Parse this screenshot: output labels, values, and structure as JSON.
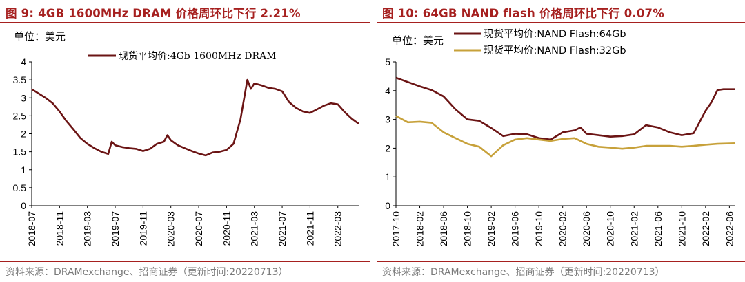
{
  "figures": [
    {
      "title": "图 9:  4GB 1600MHz DRAM 价格周环比下行 2.21%",
      "source": "资料来源：DRAMexchange、招商证券（更新时间:20220713）"
    },
    {
      "title": "图 10:  64GB NAND flash 价格周环比下行 0.07%",
      "source": "资料来源：DRAMexchange、招商证券（更新时间:20220713）"
    }
  ],
  "colors": {
    "title": "#a6201f",
    "dram": "#6b1414",
    "nand64": "#6b1414",
    "nand32": "#c7a13a",
    "source": "#7a7a7a"
  },
  "chart_data": [
    {
      "type": "line",
      "unit_label": "单位：美元",
      "ylim": [
        0,
        4
      ],
      "yticks": [
        "0",
        "0.5",
        "1",
        "1.5",
        "2",
        "2.5",
        "3",
        "3.5",
        "4"
      ],
      "xlim": [
        "2018-07",
        "2022-06"
      ],
      "xticks": [
        "2018-07",
        "2018-11",
        "2019-03",
        "2019-07",
        "2019-11",
        "2020-03",
        "2020-07",
        "2020-11",
        "2021-03",
        "2021-07",
        "2021-11",
        "2022-03"
      ],
      "series": [
        {
          "name": "现货平均价:4Gb 1600MHz DRAM",
          "points": [
            [
              "2018-07",
              3.24
            ],
            [
              "2018-08",
              3.12
            ],
            [
              "2018-09",
              3.0
            ],
            [
              "2018-10",
              2.85
            ],
            [
              "2018-11",
              2.62
            ],
            [
              "2018-12",
              2.35
            ],
            [
              "2019-01",
              2.12
            ],
            [
              "2019-02",
              1.88
            ],
            [
              "2019-03",
              1.72
            ],
            [
              "2019-04",
              1.6
            ],
            [
              "2019-05",
              1.5
            ],
            [
              "2019-06",
              1.44
            ],
            [
              "2019-06.5",
              1.78
            ],
            [
              "2019-07",
              1.68
            ],
            [
              "2019-08",
              1.63
            ],
            [
              "2019-09",
              1.6
            ],
            [
              "2019-10",
              1.58
            ],
            [
              "2019-11",
              1.52
            ],
            [
              "2019-12",
              1.58
            ],
            [
              "2020-01",
              1.72
            ],
            [
              "2020-02",
              1.78
            ],
            [
              "2020-02.5",
              1.96
            ],
            [
              "2020-03",
              1.82
            ],
            [
              "2020-04",
              1.68
            ],
            [
              "2020-05",
              1.6
            ],
            [
              "2020-06",
              1.52
            ],
            [
              "2020-07",
              1.45
            ],
            [
              "2020-08",
              1.4
            ],
            [
              "2020-09",
              1.48
            ],
            [
              "2020-10",
              1.5
            ],
            [
              "2020-11",
              1.55
            ],
            [
              "2020-12",
              1.72
            ],
            [
              "2021-01",
              2.4
            ],
            [
              "2021-02",
              3.5
            ],
            [
              "2021-02.5",
              3.25
            ],
            [
              "2021-03",
              3.4
            ],
            [
              "2021-04",
              3.35
            ],
            [
              "2021-05",
              3.28
            ],
            [
              "2021-06",
              3.25
            ],
            [
              "2021-07",
              3.18
            ],
            [
              "2021-08",
              2.88
            ],
            [
              "2021-09",
              2.72
            ],
            [
              "2021-10",
              2.62
            ],
            [
              "2021-11",
              2.58
            ],
            [
              "2021-12",
              2.68
            ],
            [
              "2022-01",
              2.78
            ],
            [
              "2022-02",
              2.85
            ],
            [
              "2022-03",
              2.82
            ],
            [
              "2022-04",
              2.6
            ],
            [
              "2022-05",
              2.42
            ],
            [
              "2022-06",
              2.28
            ]
          ]
        }
      ]
    },
    {
      "type": "line",
      "unit_label": "单位：美元",
      "ylim": [
        0,
        5
      ],
      "yticks": [
        "0",
        "1",
        "2",
        "3",
        "4",
        "5"
      ],
      "xlim": [
        "2017-10",
        "2022-07"
      ],
      "xticks": [
        "2017-10",
        "2018-02",
        "2018-06",
        "2018-10",
        "2019-02",
        "2019-06",
        "2019-10",
        "2020-02",
        "2020-06",
        "2020-10",
        "2021-02",
        "2021-06",
        "2021-10",
        "2022-02",
        "2022-06"
      ],
      "series": [
        {
          "name": "现货平均价:NAND Flash:64Gb",
          "points": [
            [
              "2017-10",
              4.45
            ],
            [
              "2017-12",
              4.3
            ],
            [
              "2018-02",
              4.15
            ],
            [
              "2018-04",
              4.02
            ],
            [
              "2018-06",
              3.8
            ],
            [
              "2018-08",
              3.35
            ],
            [
              "2018-10",
              3.0
            ],
            [
              "2018-12",
              2.95
            ],
            [
              "2019-02",
              2.7
            ],
            [
              "2019-04",
              2.42
            ],
            [
              "2019-06",
              2.5
            ],
            [
              "2019-08",
              2.48
            ],
            [
              "2019-10",
              2.35
            ],
            [
              "2019-12",
              2.3
            ],
            [
              "2020-02",
              2.55
            ],
            [
              "2020-04",
              2.62
            ],
            [
              "2020-05",
              2.72
            ],
            [
              "2020-06",
              2.5
            ],
            [
              "2020-08",
              2.45
            ],
            [
              "2020-10",
              2.4
            ],
            [
              "2020-12",
              2.42
            ],
            [
              "2021-02",
              2.48
            ],
            [
              "2021-04",
              2.8
            ],
            [
              "2021-06",
              2.72
            ],
            [
              "2021-08",
              2.55
            ],
            [
              "2021-10",
              2.45
            ],
            [
              "2021-12",
              2.52
            ],
            [
              "2022-02",
              3.3
            ],
            [
              "2022-03",
              3.6
            ],
            [
              "2022-04",
              4.02
            ],
            [
              "2022-05",
              4.05
            ],
            [
              "2022-07",
              4.05
            ]
          ]
        },
        {
          "name": "现货平均价:NAND Flash:32Gb",
          "points": [
            [
              "2017-10",
              3.12
            ],
            [
              "2017-12",
              2.9
            ],
            [
              "2018-02",
              2.92
            ],
            [
              "2018-04",
              2.88
            ],
            [
              "2018-06",
              2.55
            ],
            [
              "2018-08",
              2.35
            ],
            [
              "2018-10",
              2.15
            ],
            [
              "2018-12",
              2.05
            ],
            [
              "2019-02",
              1.72
            ],
            [
              "2019-04",
              2.1
            ],
            [
              "2019-06",
              2.3
            ],
            [
              "2019-08",
              2.35
            ],
            [
              "2019-10",
              2.3
            ],
            [
              "2019-12",
              2.25
            ],
            [
              "2020-02",
              2.32
            ],
            [
              "2020-04",
              2.35
            ],
            [
              "2020-06",
              2.15
            ],
            [
              "2020-08",
              2.05
            ],
            [
              "2020-10",
              2.02
            ],
            [
              "2020-12",
              1.98
            ],
            [
              "2021-02",
              2.02
            ],
            [
              "2021-04",
              2.08
            ],
            [
              "2021-06",
              2.08
            ],
            [
              "2021-08",
              2.08
            ],
            [
              "2021-10",
              2.05
            ],
            [
              "2021-12",
              2.08
            ],
            [
              "2022-02",
              2.12
            ],
            [
              "2022-04",
              2.15
            ],
            [
              "2022-07",
              2.17
            ]
          ]
        }
      ]
    }
  ]
}
